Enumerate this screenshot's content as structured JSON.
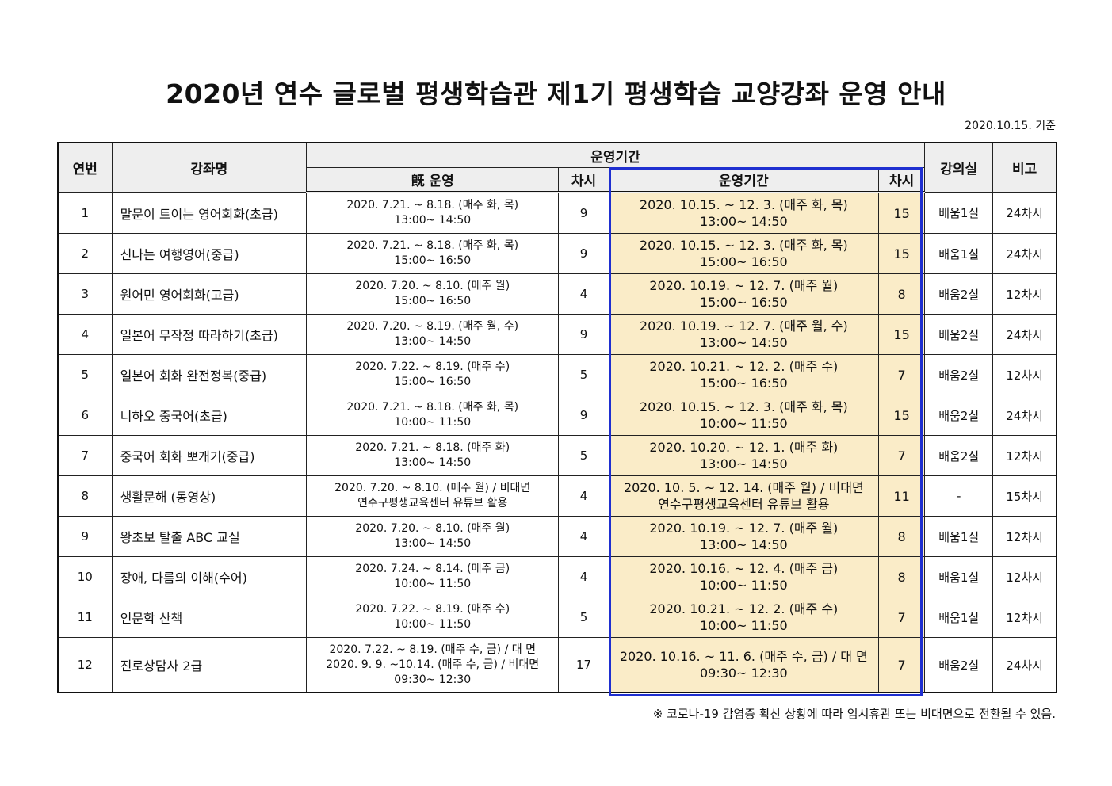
{
  "title": "2020년 연수 글로벌 평생학습관 제1기 평생학습 교양강좌 운영 안내",
  "basis_date": "2020.10.15. 기준",
  "header": {
    "no": "연번",
    "course": "강좌명",
    "period_group": "운영기간",
    "prev_period": "旣 운영",
    "prev_sessions": "차시",
    "new_period": "운영기간",
    "new_sessions": "차시",
    "room": "강의실",
    "note": "비고"
  },
  "rows": [
    {
      "no": "1",
      "course": "말문이 트이는 영어회화(초급)",
      "prev_date": "2020. 7.21. ~ 8.18. (매주 화, 목)",
      "prev_time": "13:00~ 14:50",
      "prev_sessions": "9",
      "new_date": "2020. 10.15. ~ 12. 3. (매주 화, 목)",
      "new_time": "13:00~ 14:50",
      "new_sessions": "15",
      "room": "배움1실",
      "note": "24차시"
    },
    {
      "no": "2",
      "course": "신나는 여행영어(중급)",
      "prev_date": "2020. 7.21. ~ 8.18. (매주 화, 목)",
      "prev_time": "15:00~ 16:50",
      "prev_sessions": "9",
      "new_date": "2020. 10.15. ~ 12. 3. (매주 화, 목)",
      "new_time": "15:00~ 16:50",
      "new_sessions": "15",
      "room": "배움1실",
      "note": "24차시"
    },
    {
      "no": "3",
      "course": "원어민 영어회화(고급)",
      "prev_date": "2020. 7.20. ~ 8.10. (매주 월)",
      "prev_time": "15:00~ 16:50",
      "prev_sessions": "4",
      "new_date": "2020. 10.19. ~ 12. 7. (매주 월)",
      "new_time": "15:00~ 16:50",
      "new_sessions": "8",
      "room": "배움2실",
      "note": "12차시"
    },
    {
      "no": "4",
      "course": "일본어 무작정 따라하기(초급)",
      "prev_date": "2020. 7.20. ~ 8.19. (매주 월, 수)",
      "prev_time": "13:00~ 14:50",
      "prev_sessions": "9",
      "new_date": "2020. 10.19. ~ 12. 7. (매주 월, 수)",
      "new_time": "13:00~ 14:50",
      "new_sessions": "15",
      "room": "배움2실",
      "note": "24차시"
    },
    {
      "no": "5",
      "course": "일본어 회화 완전정복(중급)",
      "prev_date": "2020. 7.22. ~ 8.19. (매주 수)",
      "prev_time": "15:00~ 16:50",
      "prev_sessions": "5",
      "new_date": "2020. 10.21. ~ 12. 2. (매주 수)",
      "new_time": "15:00~ 16:50",
      "new_sessions": "7",
      "room": "배움2실",
      "note": "12차시"
    },
    {
      "no": "6",
      "course": "니하오 중국어(초급)",
      "prev_date": "2020. 7.21. ~ 8.18. (매주 화, 목)",
      "prev_time": "10:00~ 11:50",
      "prev_sessions": "9",
      "new_date": "2020. 10.15. ~ 12. 3. (매주 화, 목)",
      "new_time": "10:00~ 11:50",
      "new_sessions": "15",
      "room": "배움2실",
      "note": "24차시"
    },
    {
      "no": "7",
      "course": "중국어 회화 뽀개기(중급)",
      "prev_date": "2020. 7.21. ~ 8.18. (매주 화)",
      "prev_time": "13:00~ 14:50",
      "prev_sessions": "5",
      "new_date": "2020. 10.20. ~ 12. 1. (매주 화)",
      "new_time": "13:00~ 14:50",
      "new_sessions": "7",
      "room": "배움2실",
      "note": "12차시"
    },
    {
      "no": "8",
      "course": "생활문해 (동영상)",
      "prev_date": "2020. 7.20. ~ 8.10. (매주 월) / 비대면",
      "prev_time": "연수구평생교육센터 유튜브 활용",
      "prev_sessions": "4",
      "new_date": "2020. 10. 5. ~ 12. 14. (매주 월) / 비대면",
      "new_time": "연수구평생교육센터 유튜브 활용",
      "new_sessions": "11",
      "room": "-",
      "note": "15차시"
    },
    {
      "no": "9",
      "course": "왕초보 탈출 ABC 교실",
      "prev_date": "2020. 7.20. ~ 8.10. (매주 월)",
      "prev_time": "13:00~ 14:50",
      "prev_sessions": "4",
      "new_date": "2020. 10.19. ~ 12. 7. (매주 월)",
      "new_time": "13:00~ 14:50",
      "new_sessions": "8",
      "room": "배움1실",
      "note": "12차시"
    },
    {
      "no": "10",
      "course": "장애, 다름의 이해(수어)",
      "prev_date": "2020. 7.24. ~ 8.14. (매주 금)",
      "prev_time": "10:00~ 11:50",
      "prev_sessions": "4",
      "new_date": "2020. 10.16. ~ 12. 4. (매주 금)",
      "new_time": "10:00~ 11:50",
      "new_sessions": "8",
      "room": "배움1실",
      "note": "12차시"
    },
    {
      "no": "11",
      "course": "인문학 산책",
      "prev_date": "2020. 7.22. ~ 8.19. (매주 수)",
      "prev_time": "10:00~ 11:50",
      "prev_sessions": "5",
      "new_date": "2020. 10.21. ~ 12. 2. (매주 수)",
      "new_time": "10:00~ 11:50",
      "new_sessions": "7",
      "room": "배움1실",
      "note": "12차시"
    }
  ],
  "row12": {
    "no": "12",
    "course": "진로상담사 2급",
    "prev_line1": "2020. 7.22. ~ 8.19. (매주 수, 금) / 대  면",
    "prev_line2": "2020. 9. 9. ~10.14. (매주 수, 금) / 비대면",
    "prev_line3": "09:30~ 12:30",
    "prev_sessions": "17",
    "new_date": "2020. 10.16. ~ 11. 6. (매주 수, 금) / 대 면",
    "new_time": "09:30~ 12:30",
    "new_sessions": "7",
    "room": "배움2실",
    "note": "24차시"
  },
  "footnote": "※ 코로나-19 감염증 확산 상황에 따라 임시휴관 또는 비대면으로 전환될 수 있음.",
  "colors": {
    "highlight_fill": "#faecc8",
    "highlight_border": "#1f2fd0",
    "header_fill": "#eeeeee"
  }
}
